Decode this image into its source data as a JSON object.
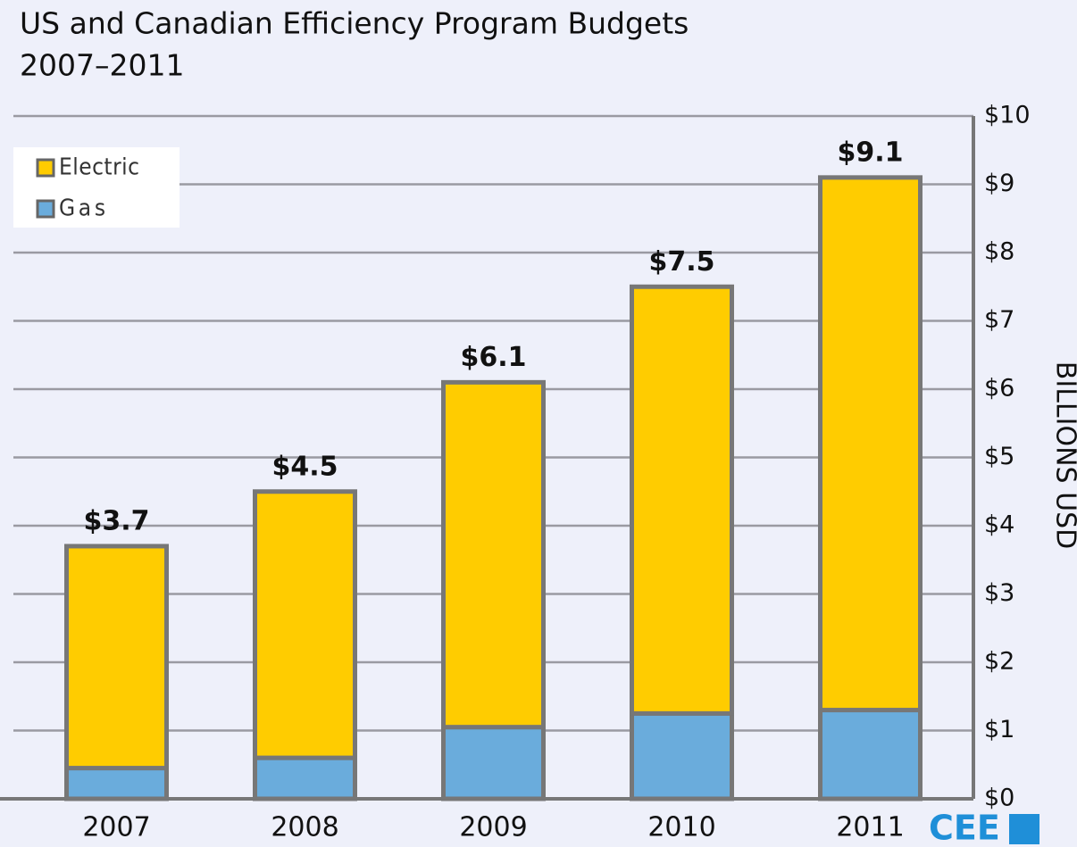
{
  "chart_data": {
    "type": "stacked-bar",
    "title": "US and Canadian Efficiency Program Budgets",
    "subtitle": "2007–2011",
    "categories": [
      "2007",
      "2008",
      "2009",
      "2010",
      "2011"
    ],
    "series": [
      {
        "name": "Gas",
        "color": "#6aacdc",
        "values": [
          0.45,
          0.6,
          1.05,
          1.25,
          1.3
        ]
      },
      {
        "name": "Electric",
        "color": "#ffcc00",
        "values": [
          3.25,
          3.9,
          5.05,
          6.25,
          7.8
        ]
      }
    ],
    "totals": [
      3.7,
      4.5,
      6.1,
      7.5,
      9.1
    ],
    "total_labels": [
      "$3.7",
      "$4.5",
      "$6.1",
      "$7.5",
      "$9.1"
    ],
    "ylabel": "BILLIONS USD",
    "ylim": [
      0,
      10
    ],
    "yticks": [
      {
        "value": 0,
        "label": "$0"
      },
      {
        "value": 1,
        "label": "$1"
      },
      {
        "value": 2,
        "label": "$2"
      },
      {
        "value": 3,
        "label": "$3"
      },
      {
        "value": 4,
        "label": "$4"
      },
      {
        "value": 5,
        "label": "$5"
      },
      {
        "value": 6,
        "label": "$6"
      },
      {
        "value": 7,
        "label": "$7"
      },
      {
        "value": 8,
        "label": "$8"
      },
      {
        "value": 9,
        "label": "$9"
      },
      {
        "value": 10,
        "label": "$10"
      }
    ],
    "grid": true,
    "legend": "upper left",
    "logo": "CEE"
  }
}
